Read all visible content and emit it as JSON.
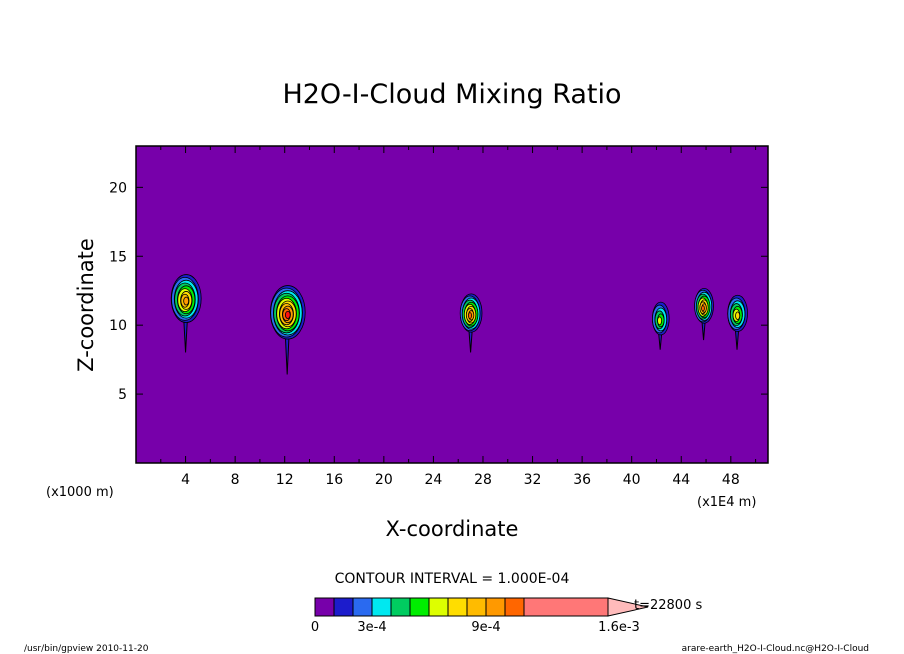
{
  "chart_data": {
    "type": "heatmap",
    "title": "H2O-I-Cloud Mixing Ratio",
    "xlabel": "X-coordinate",
    "ylabel": "Z-coordinate",
    "x_unit": "(x1000 m)",
    "x_unit2": "(x1E4 m)",
    "xlim": [
      0,
      51
    ],
    "ylim": [
      0,
      23
    ],
    "x_ticks": [
      "4",
      "8",
      "12",
      "16",
      "20",
      "24",
      "28",
      "32",
      "36",
      "40",
      "44",
      "48"
    ],
    "y_ticks": [
      "5",
      "10",
      "15",
      "20"
    ],
    "background_color": "#7700aa",
    "contour_interval_label": "CONTOUR INTERVAL = 1.000E-04",
    "time_label": "t=22800 s",
    "colorbar": {
      "colors": [
        "#7700aa",
        "#1c1ccc",
        "#2a6af0",
        "#00e8f0",
        "#00cc60",
        "#00ee00",
        "#ddff00",
        "#ffdd00",
        "#ffbb00",
        "#ff9900",
        "#ff6600",
        "#ff1111",
        "#ff7777"
      ],
      "labels": [
        {
          "value": 0,
          "text": "0"
        },
        {
          "value": 0.0003,
          "text": "3e-4"
        },
        {
          "value": 0.0009,
          "text": "9e-4"
        },
        {
          "value": 0.0016,
          "text": "1.6e-3"
        }
      ],
      "extend": "max",
      "extend_color": "#ffbbbb"
    },
    "clouds": [
      {
        "x": 4.0,
        "z_min": 8.6,
        "z_max": 13.6,
        "peak": 0.0009
      },
      {
        "x": 12.2,
        "z_min": 7.0,
        "z_max": 12.8,
        "peak": 0.0012
      },
      {
        "x": 27.0,
        "z_min": 8.6,
        "z_max": 12.2,
        "peak": 0.001
      },
      {
        "x": 42.3,
        "z_min": 8.8,
        "z_max": 11.6,
        "peak": 0.0006
      },
      {
        "x": 45.8,
        "z_min": 9.5,
        "z_max": 12.6,
        "peak": 0.001
      },
      {
        "x": 48.5,
        "z_min": 8.8,
        "z_max": 12.1,
        "peak": 0.0007
      }
    ],
    "footer_left": "/usr/bin/gpview  2010-11-20",
    "footer_right": "arare-earth_H2O-I-Cloud.nc@H2O-I-Cloud"
  }
}
